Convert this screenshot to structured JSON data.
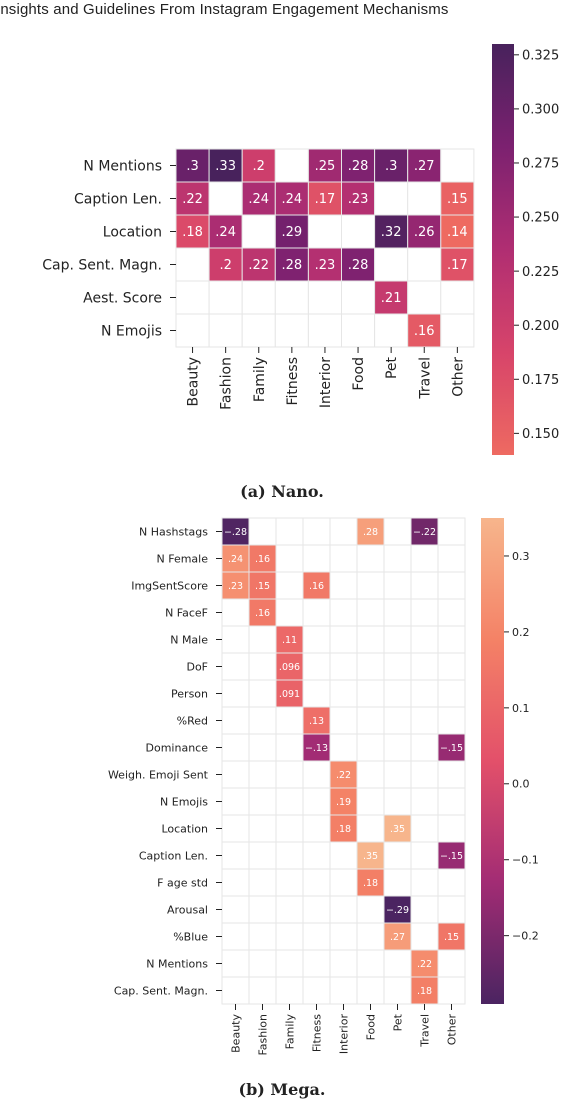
{
  "header": {
    "title": "Insights and Guidelines From Instagram Engagement Mechanisms"
  },
  "captions": {
    "nano": "(a) Nano.",
    "mega": "(b) Mega."
  },
  "chart_data": [
    {
      "type": "heatmap",
      "title": "",
      "columns": [
        "Beauty",
        "Fashion",
        "Family",
        "Fitness",
        "Interior",
        "Food",
        "Pet",
        "Travel",
        "Other"
      ],
      "rows": [
        "N Mentions",
        "Caption Len.",
        "Location",
        "Cap. Sent. Magn.",
        "Aest. Score",
        "N Emojis"
      ],
      "values": [
        [
          0.3,
          0.33,
          0.2,
          null,
          0.25,
          0.28,
          0.3,
          0.27,
          null
        ],
        [
          0.22,
          null,
          0.24,
          0.24,
          0.17,
          0.23,
          null,
          null,
          0.15
        ],
        [
          0.18,
          0.24,
          null,
          0.29,
          null,
          null,
          0.32,
          0.26,
          0.14
        ],
        [
          null,
          0.2,
          0.22,
          0.28,
          0.23,
          0.28,
          null,
          null,
          0.17
        ],
        [
          null,
          null,
          null,
          null,
          null,
          null,
          0.21,
          null,
          null
        ],
        [
          null,
          null,
          null,
          null,
          null,
          null,
          null,
          0.16,
          null
        ]
      ],
      "colorbar": {
        "range": [
          0.14,
          0.33
        ],
        "ticks": [
          0.15,
          0.175,
          0.2,
          0.225,
          0.25,
          0.275,
          0.3,
          0.325
        ],
        "tick_labels": [
          "0.150",
          "0.175",
          "0.200",
          "0.225",
          "0.250",
          "0.275",
          "0.300",
          "0.325"
        ]
      },
      "colormap": [
        "#ee6a61",
        "#d7446a",
        "#b02e72",
        "#7c2170",
        "#48225c"
      ]
    },
    {
      "type": "heatmap",
      "title": "",
      "columns": [
        "Beauty",
        "Fashion",
        "Family",
        "Fitness",
        "Interior",
        "Food",
        "Pet",
        "Travel",
        "Other"
      ],
      "rows": [
        "N Hashstags",
        "N Female",
        "ImgSentScore",
        "N FaceF",
        "N Male",
        "DoF",
        "Person",
        "%Red",
        "Dominance",
        "Weigh. Emoji Sent",
        "N Emojis",
        "Location",
        "Caption Len.",
        "F age std",
        "Arousal",
        "%Blue",
        "N Mentions",
        "Cap. Sent. Magn."
      ],
      "values": [
        [
          -0.28,
          null,
          null,
          null,
          null,
          0.28,
          null,
          -0.22,
          null
        ],
        [
          0.24,
          0.16,
          null,
          null,
          null,
          null,
          null,
          null,
          null
        ],
        [
          0.23,
          0.15,
          null,
          0.16,
          null,
          null,
          null,
          null,
          null
        ],
        [
          null,
          0.16,
          null,
          null,
          null,
          null,
          null,
          null,
          null
        ],
        [
          null,
          null,
          0.11,
          null,
          null,
          null,
          null,
          null,
          null
        ],
        [
          null,
          null,
          0.096,
          null,
          null,
          null,
          null,
          null,
          null
        ],
        [
          null,
          null,
          0.091,
          null,
          null,
          null,
          null,
          null,
          null
        ],
        [
          null,
          null,
          null,
          0.13,
          null,
          null,
          null,
          null,
          null
        ],
        [
          null,
          null,
          null,
          -0.13,
          null,
          null,
          null,
          null,
          -0.15
        ],
        [
          null,
          null,
          null,
          null,
          0.22,
          null,
          null,
          null,
          null
        ],
        [
          null,
          null,
          null,
          null,
          0.19,
          null,
          null,
          null,
          null
        ],
        [
          null,
          null,
          null,
          null,
          0.18,
          null,
          0.35,
          null,
          null
        ],
        [
          null,
          null,
          null,
          null,
          null,
          0.35,
          null,
          null,
          -0.15
        ],
        [
          null,
          null,
          null,
          null,
          null,
          0.18,
          null,
          null,
          null
        ],
        [
          null,
          null,
          null,
          null,
          null,
          null,
          -0.29,
          null,
          null
        ],
        [
          null,
          null,
          null,
          null,
          null,
          null,
          0.27,
          null,
          0.15
        ],
        [
          null,
          null,
          null,
          null,
          null,
          null,
          null,
          0.22,
          null
        ],
        [
          null,
          null,
          null,
          null,
          null,
          null,
          null,
          0.18,
          null
        ]
      ],
      "colorbar": {
        "range": [
          -0.29,
          0.35
        ],
        "ticks": [
          -0.2,
          -0.1,
          0.0,
          0.1,
          0.2,
          0.3
        ],
        "tick_labels": [
          "−0.2",
          "−0.1",
          "0.0",
          "0.1",
          "0.2",
          "0.3"
        ]
      },
      "colormap": [
        "#4b2461",
        "#a22c74",
        "#e3506a",
        "#f48266",
        "#f7b58c"
      ]
    }
  ]
}
